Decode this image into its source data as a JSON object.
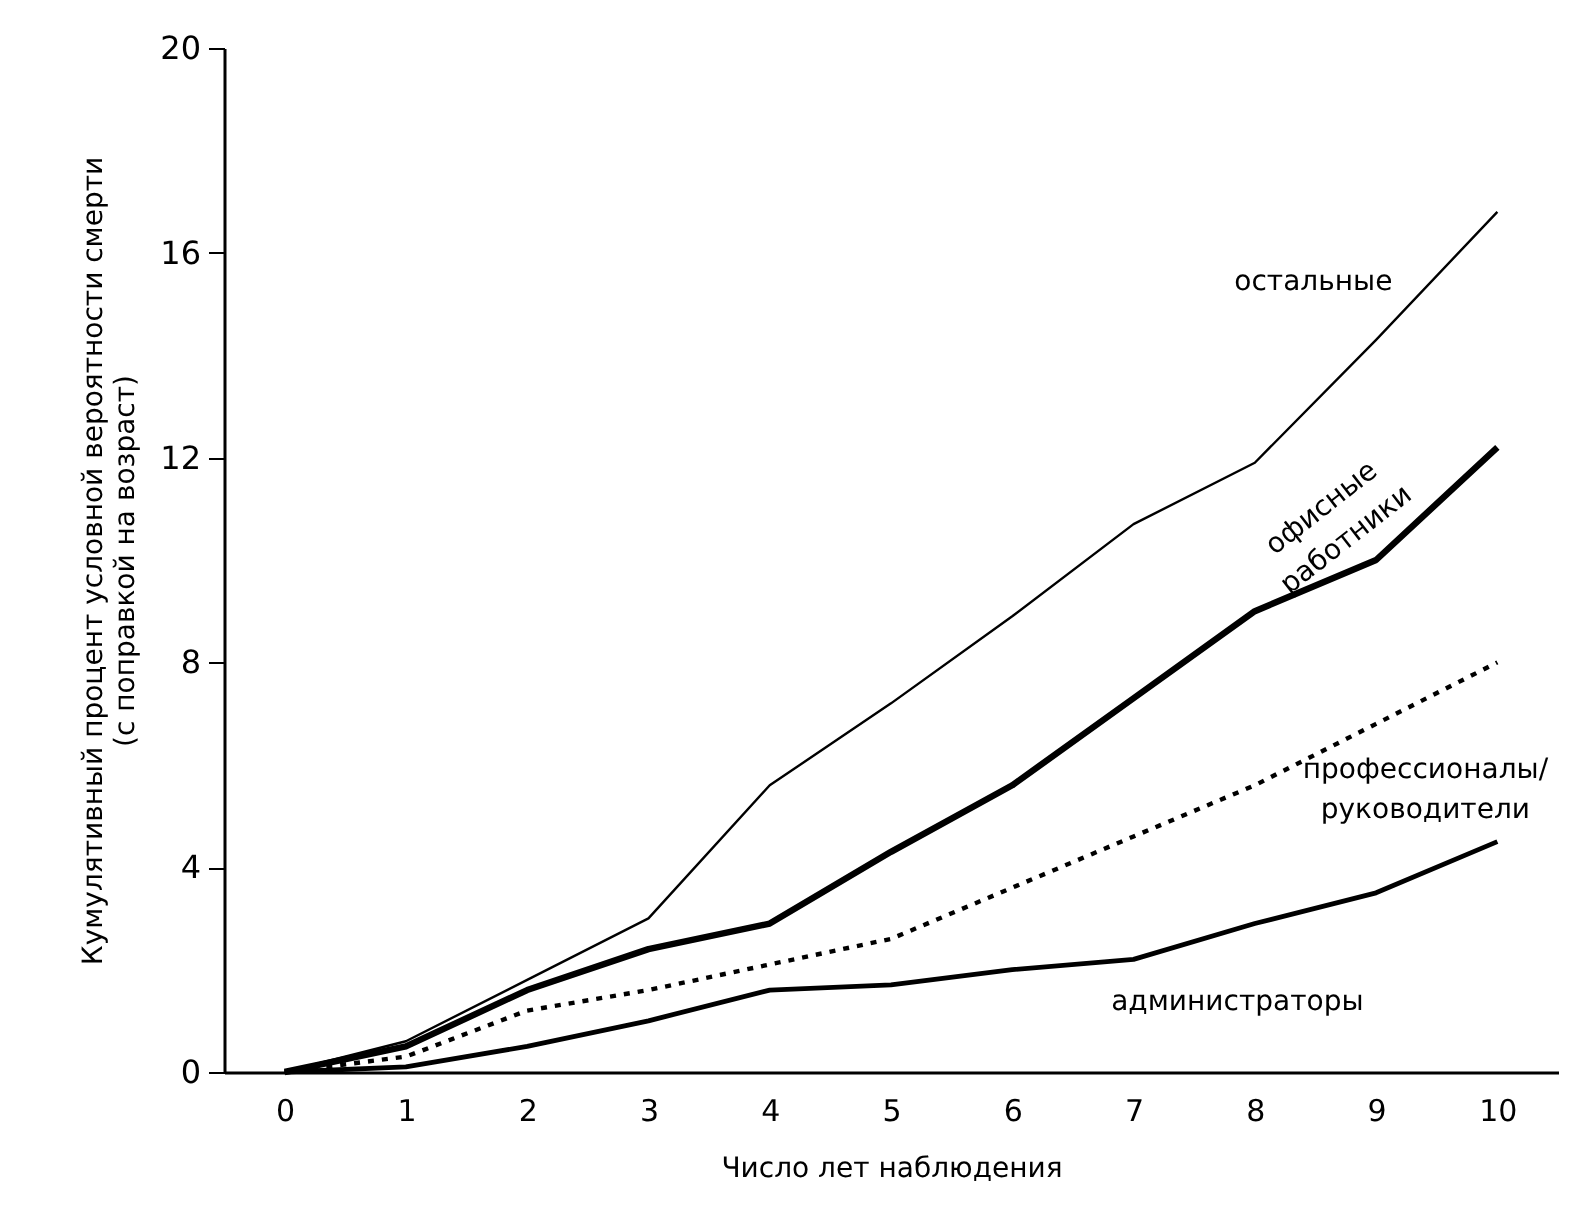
{
  "chart_data": {
    "type": "line",
    "xlabel": "Число лет наблюдения",
    "ylabel": "Кумулятивный процент условной вероятности смерти (с поправкой на возраст)",
    "x": [
      0,
      1,
      2,
      3,
      4,
      5,
      6,
      7,
      8,
      9,
      10
    ],
    "xlim": [
      -0.5,
      10.5
    ],
    "xticks": [
      0,
      1,
      2,
      3,
      4,
      5,
      6,
      7,
      8,
      9,
      10
    ],
    "ylim": [
      0,
      20
    ],
    "yticks": [
      0,
      4,
      8,
      12,
      16,
      20
    ],
    "grid": false,
    "marker": "none",
    "series": [
      {
        "name": "остальные",
        "color": "#000000",
        "line_style": "solid",
        "values": [
          0,
          0.6,
          1.8,
          3.0,
          5.6,
          7.2,
          8.9,
          10.7,
          11.9,
          14.3,
          16.8
        ]
      },
      {
        "name": "офисные работники",
        "color": "#000000",
        "line_style": "solid",
        "values": [
          0,
          0.5,
          1.6,
          2.4,
          2.9,
          4.3,
          5.6,
          7.3,
          9.0,
          10.0,
          12.2
        ]
      },
      {
        "name": "профессионалы/ руководители",
        "color": "#000000",
        "line_style": "dashed",
        "values": [
          0,
          0.3,
          1.2,
          1.6,
          2.1,
          2.6,
          3.6,
          4.6,
          5.6,
          6.8,
          8.0
        ]
      },
      {
        "name": "администраторы",
        "color": "#000000",
        "line_style": "solid",
        "values": [
          0,
          0.1,
          0.5,
          1.0,
          1.6,
          1.7,
          2.0,
          2.2,
          2.9,
          3.5,
          4.5
        ]
      }
    ]
  }
}
